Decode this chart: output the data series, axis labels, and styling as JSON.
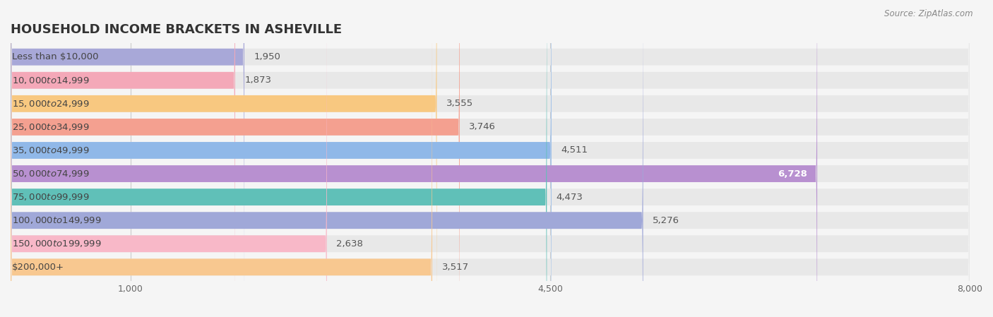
{
  "title": "HOUSEHOLD INCOME BRACKETS IN ASHEVILLE",
  "source": "Source: ZipAtlas.com",
  "categories": [
    "Less than $10,000",
    "$10,000 to $14,999",
    "$15,000 to $24,999",
    "$25,000 to $34,999",
    "$35,000 to $49,999",
    "$50,000 to $74,999",
    "$75,000 to $99,999",
    "$100,000 to $149,999",
    "$150,000 to $199,999",
    "$200,000+"
  ],
  "values": [
    1950,
    1873,
    3555,
    3746,
    4511,
    6728,
    4473,
    5276,
    2638,
    3517
  ],
  "bar_colors": [
    "#a8a8d8",
    "#f4a8b8",
    "#f8c880",
    "#f4a090",
    "#90b8e8",
    "#b890d0",
    "#60c0b8",
    "#a0a8d8",
    "#f8b8c8",
    "#f8c890"
  ],
  "xlim": [
    0,
    8000
  ],
  "xticks": [
    1000,
    4500,
    8000
  ],
  "background_color": "#f5f5f5",
  "bar_bg_color": "#e8e8e8",
  "title_fontsize": 13,
  "label_fontsize": 9.5,
  "value_fontsize": 9.5,
  "value_threshold": 6000
}
